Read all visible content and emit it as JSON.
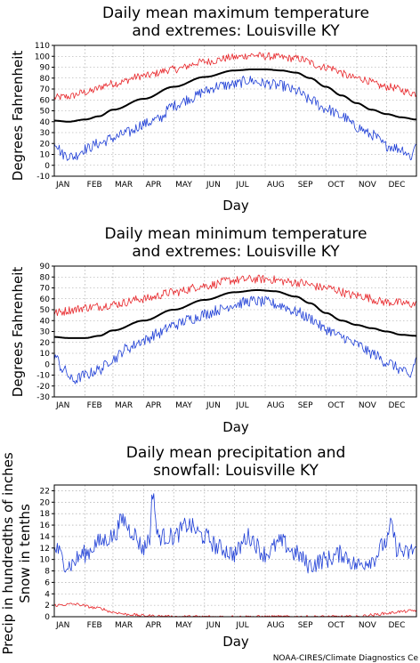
{
  "credit": "NOAA-CIRES/Climate Diagnostics Ce",
  "chart_data": [
    {
      "type": "line",
      "title_lines": [
        "Daily mean maximum temperature",
        "and extremes: Louisville KY"
      ],
      "xlabel": "Day",
      "ylabel": "Degrees Fahrenheit",
      "months": [
        "JAN",
        "FEB",
        "MAR",
        "APR",
        "MAY",
        "JUN",
        "JUL",
        "AUG",
        "SEP",
        "OCT",
        "NOV",
        "DEC"
      ],
      "xlim": [
        1,
        365
      ],
      "ylim": [
        -10,
        110
      ],
      "yticks": [
        -10,
        0,
        10,
        20,
        30,
        40,
        50,
        60,
        70,
        80,
        90,
        100,
        110
      ],
      "grid": true,
      "series": [
        {
          "color": "#e8262a",
          "width": 0.8,
          "noise": 3.5,
          "knots": [
            [
              1,
              62
            ],
            [
              15,
              63
            ],
            [
              32,
              67
            ],
            [
              60,
              75
            ],
            [
              91,
              82
            ],
            [
              121,
              88
            ],
            [
              152,
              95
            ],
            [
              182,
              99
            ],
            [
              200,
              101
            ],
            [
              213,
              100
            ],
            [
              244,
              98
            ],
            [
              274,
              90
            ],
            [
              305,
              80
            ],
            [
              335,
              72
            ],
            [
              365,
              66
            ]
          ]
        },
        {
          "color": "#000000",
          "width": 2,
          "noise": 0,
          "knots": [
            [
              1,
              41
            ],
            [
              15,
              40
            ],
            [
              32,
              42
            ],
            [
              46,
              45
            ],
            [
              60,
              51
            ],
            [
              91,
              61
            ],
            [
              121,
              72
            ],
            [
              152,
              81
            ],
            [
              182,
              87
            ],
            [
              200,
              88
            ],
            [
              213,
              88
            ],
            [
              229,
              87
            ],
            [
              244,
              85
            ],
            [
              258,
              80
            ],
            [
              274,
              72
            ],
            [
              290,
              64
            ],
            [
              305,
              57
            ],
            [
              320,
              51
            ],
            [
              335,
              47
            ],
            [
              350,
              44
            ],
            [
              365,
              42
            ]
          ]
        },
        {
          "color": "#1f3fd6",
          "width": 0.8,
          "noise": 5,
          "knots": [
            [
              1,
              22
            ],
            [
              10,
              10
            ],
            [
              20,
              8
            ],
            [
              32,
              15
            ],
            [
              46,
              20
            ],
            [
              60,
              25
            ],
            [
              75,
              30
            ],
            [
              91,
              38
            ],
            [
              105,
              42
            ],
            [
              121,
              55
            ],
            [
              140,
              62
            ],
            [
              152,
              68
            ],
            [
              167,
              73
            ],
            [
              182,
              74
            ],
            [
              196,
              78
            ],
            [
              213,
              75
            ],
            [
              229,
              73
            ],
            [
              244,
              68
            ],
            [
              258,
              60
            ],
            [
              274,
              52
            ],
            [
              290,
              45
            ],
            [
              305,
              35
            ],
            [
              320,
              28
            ],
            [
              335,
              18
            ],
            [
              350,
              15
            ],
            [
              360,
              8
            ],
            [
              365,
              22
            ]
          ]
        }
      ]
    },
    {
      "type": "line",
      "title_lines": [
        "Daily mean minimum temperature",
        "and extremes: Louisville KY"
      ],
      "xlabel": "Day",
      "ylabel": "Degrees Fahrenheit",
      "months": [
        "JAN",
        "FEB",
        "MAR",
        "APR",
        "MAY",
        "JUN",
        "JUL",
        "AUG",
        "SEP",
        "OCT",
        "NOV",
        "DEC"
      ],
      "xlim": [
        1,
        365
      ],
      "ylim": [
        -30,
        90
      ],
      "yticks": [
        -30,
        -20,
        -10,
        0,
        10,
        20,
        30,
        40,
        50,
        60,
        70,
        80,
        90
      ],
      "grid": true,
      "series": [
        {
          "color": "#e8262a",
          "width": 0.8,
          "noise": 4,
          "knots": [
            [
              1,
              47
            ],
            [
              20,
              50
            ],
            [
              32,
              52
            ],
            [
              46,
              53
            ],
            [
              60,
              55
            ],
            [
              91,
              60
            ],
            [
              121,
              66
            ],
            [
              152,
              72
            ],
            [
              182,
              77
            ],
            [
              200,
              78
            ],
            [
              213,
              78
            ],
            [
              244,
              75
            ],
            [
              274,
              70
            ],
            [
              305,
              63
            ],
            [
              335,
              57
            ],
            [
              365,
              55
            ]
          ]
        },
        {
          "color": "#000000",
          "width": 2,
          "noise": 0,
          "knots": [
            [
              1,
              25
            ],
            [
              15,
              24
            ],
            [
              32,
              24
            ],
            [
              46,
              26
            ],
            [
              60,
              31
            ],
            [
              91,
              40
            ],
            [
              121,
              50
            ],
            [
              152,
              59
            ],
            [
              182,
              66
            ],
            [
              205,
              68
            ],
            [
              222,
              67
            ],
            [
              244,
              62
            ],
            [
              258,
              56
            ],
            [
              274,
              47
            ],
            [
              290,
              40
            ],
            [
              305,
              36
            ],
            [
              320,
              33
            ],
            [
              335,
              30
            ],
            [
              350,
              27
            ],
            [
              365,
              26
            ]
          ]
        },
        {
          "color": "#1f3fd6",
          "width": 0.8,
          "noise": 5,
          "knots": [
            [
              1,
              8
            ],
            [
              10,
              -5
            ],
            [
              20,
              -15
            ],
            [
              32,
              -10
            ],
            [
              46,
              -5
            ],
            [
              60,
              5
            ],
            [
              75,
              15
            ],
            [
              91,
              22
            ],
            [
              105,
              28
            ],
            [
              121,
              36
            ],
            [
              140,
              42
            ],
            [
              152,
              46
            ],
            [
              167,
              50
            ],
            [
              182,
              55
            ],
            [
              200,
              58
            ],
            [
              213,
              57
            ],
            [
              229,
              54
            ],
            [
              244,
              48
            ],
            [
              258,
              42
            ],
            [
              274,
              32
            ],
            [
              290,
              25
            ],
            [
              305,
              18
            ],
            [
              320,
              10
            ],
            [
              335,
              2
            ],
            [
              350,
              -5
            ],
            [
              358,
              -12
            ],
            [
              365,
              5
            ]
          ]
        }
      ]
    },
    {
      "type": "line",
      "title_lines": [
        "Daily mean precipitation and",
        "snowfall: Louisville KY"
      ],
      "xlabel": "Day",
      "ylabel_lines": [
        "Precip in hundredths of inches",
        "Snow in tenths"
      ],
      "months": [
        "JAN",
        "FEB",
        "MAR",
        "APR",
        "MAY",
        "JUN",
        "JUL",
        "AUG",
        "SEP",
        "OCT",
        "NOV",
        "DEC"
      ],
      "xlim": [
        1,
        365
      ],
      "ylim": [
        0,
        23
      ],
      "yticks": [
        0,
        2,
        4,
        6,
        8,
        10,
        12,
        14,
        16,
        18,
        20,
        22
      ],
      "grid": true,
      "series": [
        {
          "color": "#1f3fd6",
          "width": 0.8,
          "noise": 1.6,
          "knots": [
            [
              1,
              12
            ],
            [
              15,
              9
            ],
            [
              32,
              11
            ],
            [
              46,
              13
            ],
            [
              60,
              14
            ],
            [
              70,
              17
            ],
            [
              78,
              15
            ],
            [
              91,
              12
            ],
            [
              97,
              14
            ],
            [
              100,
              22
            ],
            [
              105,
              14
            ],
            [
              121,
              14
            ],
            [
              135,
              16
            ],
            [
              152,
              14
            ],
            [
              167,
              12
            ],
            [
              182,
              11
            ],
            [
              196,
              14
            ],
            [
              213,
              11
            ],
            [
              229,
              13
            ],
            [
              244,
              11
            ],
            [
              258,
              9
            ],
            [
              274,
              10
            ],
            [
              290,
              11
            ],
            [
              305,
              9
            ],
            [
              320,
              10
            ],
            [
              335,
              13
            ],
            [
              340,
              16
            ],
            [
              345,
              12
            ],
            [
              355,
              11
            ],
            [
              365,
              12
            ]
          ]
        },
        {
          "color": "#e8262a",
          "width": 0.8,
          "noise": 0.25,
          "knots": [
            [
              1,
              2
            ],
            [
              20,
              2.2
            ],
            [
              46,
              1.5
            ],
            [
              60,
              0.8
            ],
            [
              75,
              0.4
            ],
            [
              91,
              0.2
            ],
            [
              105,
              0.1
            ],
            [
              121,
              0
            ],
            [
              305,
              0
            ],
            [
              320,
              0.3
            ],
            [
              335,
              0.6
            ],
            [
              350,
              0.9
            ],
            [
              365,
              1.1
            ]
          ]
        }
      ]
    }
  ]
}
